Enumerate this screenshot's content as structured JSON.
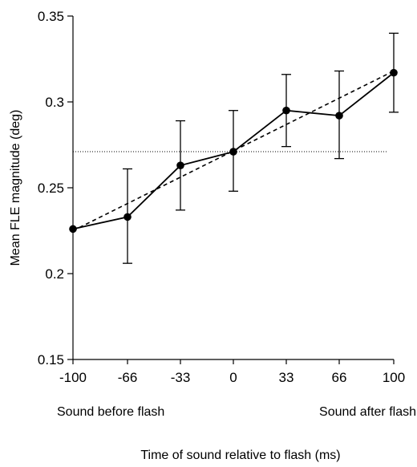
{
  "chart_data": {
    "type": "line",
    "ylabel": "Mean FLE magnitude (deg)",
    "xlabel": "Time of sound relative to flash (ms)",
    "x": [
      -100,
      -66,
      -33,
      0,
      33,
      66,
      100
    ],
    "x_tick_labels": [
      "-100",
      "-66",
      "-33",
      "0",
      "33",
      "66",
      "100"
    ],
    "y_tick_labels": [
      "0.15",
      "0.2",
      "0.25",
      "0.3",
      "0.35"
    ],
    "ylim": [
      0.15,
      0.35
    ],
    "grid": false,
    "series": [
      {
        "values": [
          0.226,
          0.233,
          0.263,
          0.271,
          0.295,
          0.292,
          0.317
        ],
        "error_low": [
          0.226,
          0.206,
          0.237,
          0.248,
          0.274,
          0.267,
          0.294
        ],
        "error_high": [
          0.226,
          0.261,
          0.289,
          0.295,
          0.316,
          0.318,
          0.34
        ],
        "style": "solid",
        "marker": "filled-circle",
        "color": "#000000"
      }
    ],
    "fit_line": {
      "from": [
        -100,
        0.225
      ],
      "to": [
        100,
        0.318
      ],
      "style": "dashed"
    },
    "reference_line": {
      "y": 0.271,
      "style": "dotted"
    },
    "annotations": [
      "Sound before flash",
      "Sound after flash"
    ]
  }
}
